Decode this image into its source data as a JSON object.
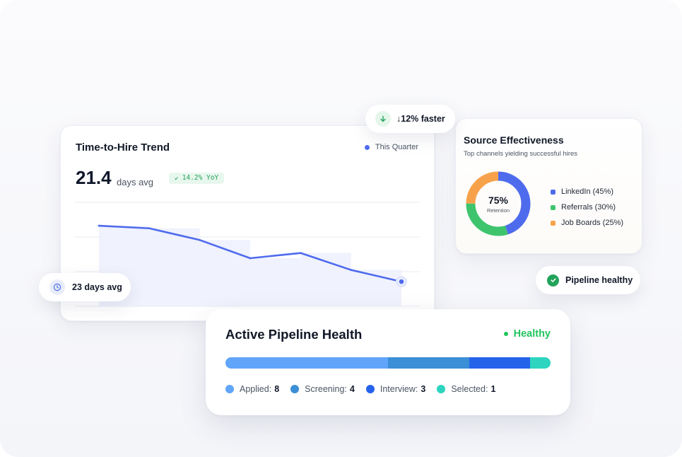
{
  "colors": {
    "primary": "#4f6bed",
    "success": "#22c55e",
    "applied": "#60a5fa",
    "screening": "#3b8fd6",
    "interview": "#2563eb",
    "selected": "#2dd4bf",
    "linkedin": "#4f6bed",
    "referrals": "#3ec46d",
    "job_boards": "#f7a24b"
  },
  "trend": {
    "title": "Time-to-Hire Trend",
    "legend_label": "This Quarter",
    "value": "21.4",
    "unit": "days avg",
    "yoy": "14.2% YoY",
    "yoy_icon": "arrow-down-left-icon"
  },
  "chart_data": {
    "type": "line",
    "x": [
      1,
      2,
      3,
      4,
      5,
      6,
      7
    ],
    "values": [
      31,
      30,
      25.5,
      18.5,
      20.5,
      14,
      9.5
    ],
    "ylim": [
      0,
      40
    ],
    "grid": true,
    "legend": "top-right"
  },
  "badges": {
    "faster": {
      "text": "↓12% faster",
      "icon": "arrow-down-icon"
    },
    "days_avg": {
      "text": "23 days avg",
      "icon": "clock-icon"
    },
    "pipeline_healthy": {
      "text": "Pipeline healthy",
      "icon": "check-circle-icon"
    }
  },
  "source": {
    "title": "Source Effectiveness",
    "subtitle": "Top channels yielding successful hires",
    "center_value": "75%",
    "center_label": "Retention",
    "channels": [
      {
        "label": "LinkedIn (45%)",
        "pct": 45,
        "color": "#4f6bed"
      },
      {
        "label": "Referrals (30%)",
        "pct": 30,
        "color": "#3ec46d"
      },
      {
        "label": "Job Boards (25%)",
        "pct": 25,
        "color": "#f7a24b"
      }
    ]
  },
  "pipeline": {
    "title": "Active Pipeline Health",
    "status": "Healthy",
    "stages": [
      {
        "label": "Applied:",
        "count": "8",
        "value": 8,
        "color": "#60a5fa"
      },
      {
        "label": "Screening:",
        "count": "4",
        "value": 4,
        "color": "#3b8fd6"
      },
      {
        "label": "Interview:",
        "count": "3",
        "value": 3,
        "color": "#2563eb"
      },
      {
        "label": "Selected:",
        "count": "1",
        "value": 1,
        "color": "#2dd4bf"
      }
    ]
  }
}
